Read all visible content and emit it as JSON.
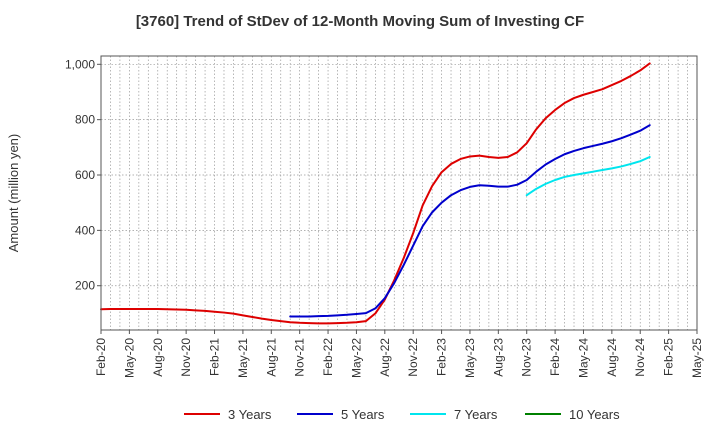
{
  "chart_data": {
    "type": "line",
    "title": "[3760]  Trend of StDev of 12-Month Moving Sum of Investing CF",
    "ylabel": "Amount (million yen)",
    "xlabel": "",
    "x_ticks": [
      "Feb-20",
      "May-20",
      "Aug-20",
      "Nov-20",
      "Feb-21",
      "May-21",
      "Aug-21",
      "Nov-21",
      "Feb-22",
      "May-22",
      "Aug-22",
      "Nov-22",
      "Feb-23",
      "May-23",
      "Aug-23",
      "Nov-23",
      "Feb-24",
      "May-24",
      "Aug-24",
      "Nov-24",
      "Feb-25",
      "May-25"
    ],
    "y_ticks": [
      200,
      400,
      600,
      800,
      1000
    ],
    "y_tick_labels": [
      "200",
      "400",
      "600",
      "800",
      "1,000"
    ],
    "ylim": [
      40,
      1030
    ],
    "xlim": [
      "2020-02",
      "2025-05"
    ],
    "grid": true,
    "legend_position": "bottom",
    "series": [
      {
        "name": "3 Years",
        "color": "#dd0000",
        "points": [
          [
            "2020-02",
            115
          ],
          [
            "2020-03",
            116
          ],
          [
            "2020-04",
            116
          ],
          [
            "2020-05",
            116
          ],
          [
            "2020-06",
            116
          ],
          [
            "2020-07",
            116
          ],
          [
            "2020-08",
            116
          ],
          [
            "2020-09",
            115
          ],
          [
            "2020-10",
            114
          ],
          [
            "2020-11",
            113
          ],
          [
            "2020-12",
            111
          ],
          [
            "2021-01",
            109
          ],
          [
            "2021-02",
            106
          ],
          [
            "2021-03",
            103
          ],
          [
            "2021-04",
            99
          ],
          [
            "2021-05",
            93
          ],
          [
            "2021-06",
            87
          ],
          [
            "2021-07",
            81
          ],
          [
            "2021-08",
            76
          ],
          [
            "2021-09",
            72
          ],
          [
            "2021-10",
            68
          ],
          [
            "2021-11",
            66
          ],
          [
            "2021-12",
            65
          ],
          [
            "2022-01",
            64
          ],
          [
            "2022-02",
            64
          ],
          [
            "2022-03",
            65
          ],
          [
            "2022-04",
            66
          ],
          [
            "2022-05",
            68
          ],
          [
            "2022-06",
            72
          ],
          [
            "2022-07",
            100
          ],
          [
            "2022-08",
            150
          ],
          [
            "2022-09",
            220
          ],
          [
            "2022-10",
            300
          ],
          [
            "2022-11",
            390
          ],
          [
            "2022-12",
            490
          ],
          [
            "2023-01",
            560
          ],
          [
            "2023-02",
            610
          ],
          [
            "2023-03",
            640
          ],
          [
            "2023-04",
            658
          ],
          [
            "2023-05",
            667
          ],
          [
            "2023-06",
            670
          ],
          [
            "2023-07",
            665
          ],
          [
            "2023-08",
            662
          ],
          [
            "2023-09",
            665
          ],
          [
            "2023-10",
            682
          ],
          [
            "2023-11",
            715
          ],
          [
            "2023-12",
            765
          ],
          [
            "2024-01",
            805
          ],
          [
            "2024-02",
            835
          ],
          [
            "2024-03",
            860
          ],
          [
            "2024-04",
            878
          ],
          [
            "2024-05",
            890
          ],
          [
            "2024-06",
            900
          ],
          [
            "2024-07",
            910
          ],
          [
            "2024-08",
            925
          ],
          [
            "2024-09",
            940
          ],
          [
            "2024-10",
            958
          ],
          [
            "2024-11",
            978
          ],
          [
            "2024-12",
            1003
          ]
        ]
      },
      {
        "name": "5 Years",
        "color": "#0000cc",
        "points": [
          [
            "2021-10",
            89
          ],
          [
            "2021-11",
            89
          ],
          [
            "2021-12",
            89
          ],
          [
            "2022-01",
            90
          ],
          [
            "2022-02",
            91
          ],
          [
            "2022-03",
            93
          ],
          [
            "2022-04",
            95
          ],
          [
            "2022-05",
            98
          ],
          [
            "2022-06",
            101
          ],
          [
            "2022-07",
            118
          ],
          [
            "2022-08",
            155
          ],
          [
            "2022-09",
            210
          ],
          [
            "2022-10",
            275
          ],
          [
            "2022-11",
            345
          ],
          [
            "2022-12",
            415
          ],
          [
            "2023-01",
            465
          ],
          [
            "2023-02",
            500
          ],
          [
            "2023-03",
            527
          ],
          [
            "2023-04",
            545
          ],
          [
            "2023-05",
            557
          ],
          [
            "2023-06",
            563
          ],
          [
            "2023-07",
            561
          ],
          [
            "2023-08",
            558
          ],
          [
            "2023-09",
            558
          ],
          [
            "2023-10",
            565
          ],
          [
            "2023-11",
            582
          ],
          [
            "2023-12",
            612
          ],
          [
            "2024-01",
            638
          ],
          [
            "2024-02",
            658
          ],
          [
            "2024-03",
            675
          ],
          [
            "2024-04",
            687
          ],
          [
            "2024-05",
            697
          ],
          [
            "2024-06",
            705
          ],
          [
            "2024-07",
            713
          ],
          [
            "2024-08",
            722
          ],
          [
            "2024-09",
            733
          ],
          [
            "2024-10",
            746
          ],
          [
            "2024-11",
            760
          ],
          [
            "2024-12",
            780
          ]
        ]
      },
      {
        "name": "7 Years",
        "color": "#00e5ee",
        "points": [
          [
            "2023-11",
            527
          ],
          [
            "2023-12",
            550
          ],
          [
            "2024-01",
            568
          ],
          [
            "2024-02",
            582
          ],
          [
            "2024-03",
            593
          ],
          [
            "2024-04",
            600
          ],
          [
            "2024-05",
            606
          ],
          [
            "2024-06",
            612
          ],
          [
            "2024-07",
            618
          ],
          [
            "2024-08",
            624
          ],
          [
            "2024-09",
            631
          ],
          [
            "2024-10",
            640
          ],
          [
            "2024-11",
            650
          ],
          [
            "2024-12",
            665
          ]
        ]
      },
      {
        "name": "10 Years",
        "color": "#008000",
        "points": []
      }
    ]
  }
}
